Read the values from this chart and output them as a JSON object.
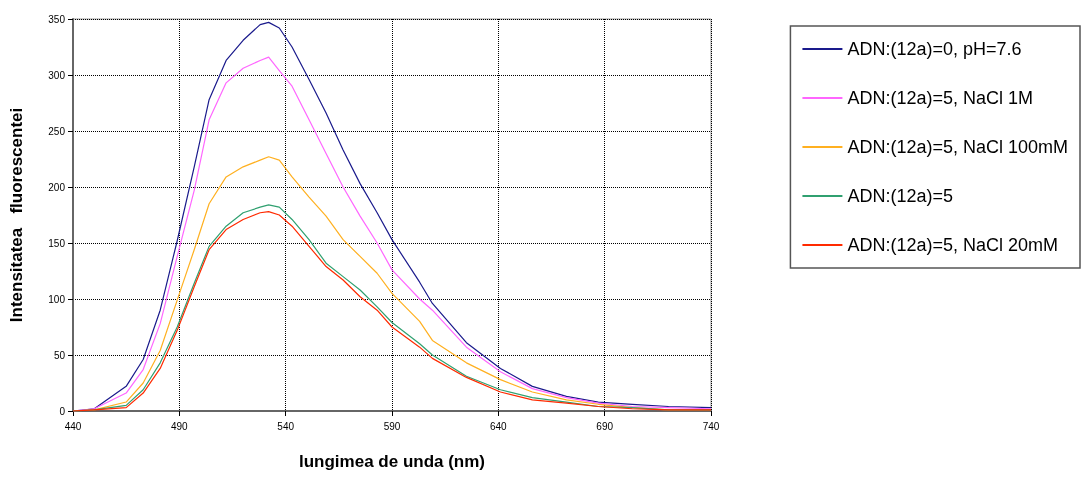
{
  "chart_data": {
    "type": "line",
    "xlabel": "lungimea de unda (nm)",
    "ylabel": "Intensitatea   fluorescentei",
    "x": [
      440,
      450,
      465,
      473,
      481,
      489,
      497,
      504,
      512,
      520,
      528,
      532,
      537,
      543,
      551,
      559,
      567,
      575,
      583,
      590,
      603,
      609,
      625,
      641,
      656,
      672,
      687,
      703,
      720,
      740
    ],
    "series": [
      {
        "name": "ADN:(12a)=0, pH=7.6",
        "color": "#1a1a8c",
        "values": [
          0,
          2,
          22,
          46,
          90,
          152,
          218,
          278,
          313,
          331,
          345,
          347,
          342,
          325,
          296,
          266,
          233,
          203,
          177,
          153,
          115,
          96,
          61,
          38,
          22,
          13,
          8,
          6,
          4,
          3
        ]
      },
      {
        "name": "ADN:(12a)=5, NaCl 1M",
        "color": "#ff66ff",
        "values": [
          0,
          2,
          16,
          37,
          78,
          138,
          197,
          260,
          293,
          306,
          313,
          316,
          304,
          290,
          260,
          230,
          200,
          174,
          150,
          126,
          100,
          90,
          57,
          35,
          20,
          12,
          7,
          4,
          3,
          2
        ]
      },
      {
        "name": "ADN:(12a)=5, NaCl 100mM",
        "color": "#ffb020",
        "values": [
          0,
          1,
          8,
          25,
          54,
          99,
          144,
          185,
          209,
          218,
          224,
          227,
          224,
          209,
          191,
          174,
          153,
          138,
          123,
          105,
          80,
          63,
          43,
          28,
          17,
          10,
          6,
          3,
          1,
          1
        ]
      },
      {
        "name": "ADN:(12a)=5",
        "color": "#30a070",
        "values": [
          0,
          1,
          5,
          19,
          43,
          75,
          114,
          147,
          165,
          177,
          182,
          184,
          182,
          171,
          153,
          132,
          120,
          108,
          93,
          79,
          60,
          50,
          31,
          19,
          12,
          8,
          4,
          3,
          1,
          1
        ]
      },
      {
        "name": "ADN:(12a)=5, NaCl 20mM",
        "color": "#ff2a00",
        "values": [
          0,
          1,
          3,
          16,
          38,
          72,
          111,
          144,
          162,
          171,
          177,
          178,
          175,
          165,
          147,
          129,
          117,
          102,
          90,
          75,
          57,
          47,
          30,
          17,
          10,
          7,
          4,
          2,
          1,
          1
        ]
      }
    ],
    "xlim": [
      440,
      740
    ],
    "xticks": [
      440,
      490,
      540,
      590,
      640,
      690,
      740
    ],
    "ylim": [
      0,
      350
    ],
    "yticks": [
      0,
      50,
      100,
      150,
      200,
      250,
      300,
      350
    ],
    "grid": true,
    "legend": "right",
    "marker": "none",
    "line_style": "solid"
  }
}
